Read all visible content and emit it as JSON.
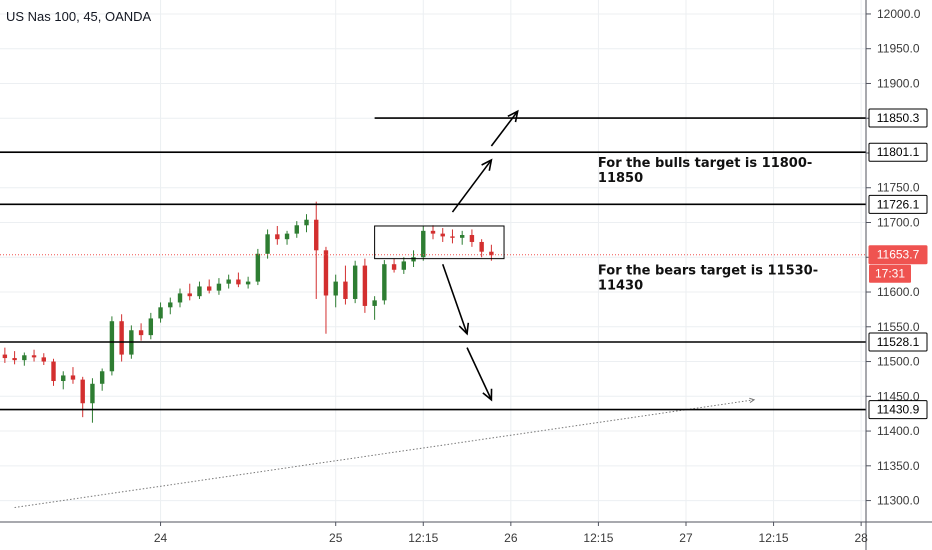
{
  "chart_data": {
    "type": "candlestick",
    "title": "US Nas 100, 45, OANDA",
    "y_range": [
      11285,
      12010
    ],
    "y_ticks": [
      11300,
      11350,
      11400,
      11450,
      11500,
      11550,
      11600,
      11650,
      11700,
      11750,
      11800,
      11850,
      11900,
      11950,
      12000
    ],
    "y_tick_labels": [
      "11300.0",
      "11350.0",
      "11400.0",
      "11450.0",
      "11500.0",
      "11550.0",
      "11600.0",
      "11650.0",
      "11700.0",
      "11750.0",
      "11800.0",
      "11850.0",
      "11900.0",
      "11950.0",
      "12000.0"
    ],
    "x_ticks": [
      {
        "label": "24",
        "bar": 16.5
      },
      {
        "label": "25",
        "bar": 34.5
      },
      {
        "label": "12:15",
        "bar": 43.5
      },
      {
        "label": "26",
        "bar": 52.5
      },
      {
        "label": "12:15",
        "bar": 61.5
      },
      {
        "label": "27",
        "bar": 70.5
      },
      {
        "label": "12:15",
        "bar": 79.5
      },
      {
        "label": "28",
        "bar": 88.5
      }
    ],
    "visible_bars": [
      0,
      89
    ],
    "candles": [
      {
        "o": 11510,
        "h": 11520,
        "l": 11498,
        "c": 11505
      },
      {
        "o": 11505,
        "h": 11515,
        "l": 11496,
        "c": 11502
      },
      {
        "o": 11502,
        "h": 11513,
        "l": 11494,
        "c": 11509
      },
      {
        "o": 11509,
        "h": 11517,
        "l": 11500,
        "c": 11506
      },
      {
        "o": 11506,
        "h": 11512,
        "l": 11495,
        "c": 11500
      },
      {
        "o": 11500,
        "h": 11504,
        "l": 11465,
        "c": 11472
      },
      {
        "o": 11472,
        "h": 11486,
        "l": 11460,
        "c": 11480
      },
      {
        "o": 11480,
        "h": 11492,
        "l": 11468,
        "c": 11474
      },
      {
        "o": 11474,
        "h": 11478,
        "l": 11420,
        "c": 11440
      },
      {
        "o": 11440,
        "h": 11476,
        "l": 11412,
        "c": 11468
      },
      {
        "o": 11468,
        "h": 11490,
        "l": 11458,
        "c": 11486
      },
      {
        "o": 11486,
        "h": 11565,
        "l": 11480,
        "c": 11558
      },
      {
        "o": 11558,
        "h": 11568,
        "l": 11500,
        "c": 11510
      },
      {
        "o": 11510,
        "h": 11552,
        "l": 11504,
        "c": 11545
      },
      {
        "o": 11545,
        "h": 11555,
        "l": 11530,
        "c": 11538
      },
      {
        "o": 11538,
        "h": 11570,
        "l": 11532,
        "c": 11562
      },
      {
        "o": 11562,
        "h": 11585,
        "l": 11556,
        "c": 11578
      },
      {
        "o": 11578,
        "h": 11592,
        "l": 11568,
        "c": 11585
      },
      {
        "o": 11585,
        "h": 11605,
        "l": 11578,
        "c": 11598
      },
      {
        "o": 11598,
        "h": 11612,
        "l": 11588,
        "c": 11594
      },
      {
        "o": 11594,
        "h": 11615,
        "l": 11590,
        "c": 11608
      },
      {
        "o": 11608,
        "h": 11618,
        "l": 11598,
        "c": 11602
      },
      {
        "o": 11602,
        "h": 11620,
        "l": 11596,
        "c": 11612
      },
      {
        "o": 11612,
        "h": 11625,
        "l": 11605,
        "c": 11618
      },
      {
        "o": 11618,
        "h": 11628,
        "l": 11607,
        "c": 11611
      },
      {
        "o": 11611,
        "h": 11622,
        "l": 11605,
        "c": 11615
      },
      {
        "o": 11615,
        "h": 11662,
        "l": 11610,
        "c": 11655
      },
      {
        "o": 11655,
        "h": 11690,
        "l": 11648,
        "c": 11683
      },
      {
        "o": 11683,
        "h": 11695,
        "l": 11668,
        "c": 11676
      },
      {
        "o": 11676,
        "h": 11688,
        "l": 11668,
        "c": 11684
      },
      {
        "o": 11684,
        "h": 11702,
        "l": 11678,
        "c": 11696
      },
      {
        "o": 11696,
        "h": 11712,
        "l": 11686,
        "c": 11704
      },
      {
        "o": 11704,
        "h": 11730,
        "l": 11590,
        "c": 11660
      },
      {
        "o": 11660,
        "h": 11665,
        "l": 11540,
        "c": 11595
      },
      {
        "o": 11595,
        "h": 11625,
        "l": 11578,
        "c": 11615
      },
      {
        "o": 11615,
        "h": 11638,
        "l": 11582,
        "c": 11590
      },
      {
        "o": 11590,
        "h": 11645,
        "l": 11584,
        "c": 11638
      },
      {
        "o": 11638,
        "h": 11648,
        "l": 11570,
        "c": 11580
      },
      {
        "o": 11580,
        "h": 11594,
        "l": 11560,
        "c": 11588
      },
      {
        "o": 11588,
        "h": 11646,
        "l": 11582,
        "c": 11640
      },
      {
        "o": 11640,
        "h": 11648,
        "l": 11628,
        "c": 11632
      },
      {
        "o": 11632,
        "h": 11650,
        "l": 11626,
        "c": 11644
      },
      {
        "o": 11644,
        "h": 11660,
        "l": 11636,
        "c": 11650
      },
      {
        "o": 11650,
        "h": 11695,
        "l": 11645,
        "c": 11688
      },
      {
        "o": 11688,
        "h": 11696,
        "l": 11676,
        "c": 11684
      },
      {
        "o": 11684,
        "h": 11692,
        "l": 11672,
        "c": 11680
      },
      {
        "o": 11680,
        "h": 11690,
        "l": 11670,
        "c": 11678
      },
      {
        "o": 11678,
        "h": 11688,
        "l": 11668,
        "c": 11682
      },
      {
        "o": 11682,
        "h": 11690,
        "l": 11665,
        "c": 11672
      },
      {
        "o": 11672,
        "h": 11676,
        "l": 11650,
        "c": 11658
      },
      {
        "o": 11658,
        "h": 11668,
        "l": 11645,
        "c": 11653
      }
    ],
    "colors": {
      "up": "#26a69a",
      "down": "#ef5350",
      "up_body": "#2e7d32",
      "down_body": "#d32f2f",
      "grid": "#eceff2"
    },
    "levels": [
      {
        "price": 11850.3,
        "label": "11850.3",
        "from_bar": 38.5
      },
      {
        "price": 11801.1,
        "label": "11801.1",
        "from_bar": 0
      },
      {
        "price": 11726.1,
        "label": "11726.1",
        "from_bar": 0
      },
      {
        "price": 11528.1,
        "label": "11528.1",
        "from_bar": 0
      },
      {
        "price": 11430.9,
        "label": "11430.9",
        "from_bar": 0
      }
    ],
    "last_price": {
      "price": 11653.7,
      "label": "11653.7",
      "countdown": "17:31",
      "color": "#ef5350"
    },
    "range_box": {
      "from_bar": 38.5,
      "to_bar": 51.8,
      "low": 11648,
      "high": 11695
    },
    "arrows": [
      {
        "from": [
          46.5,
          11715
        ],
        "to": [
          50.5,
          11790
        ]
      },
      {
        "from": [
          50.5,
          11810
        ],
        "to": [
          53.2,
          11860
        ]
      },
      {
        "from": [
          45.5,
          11640
        ],
        "to": [
          48.0,
          11540
        ]
      },
      {
        "from": [
          48.0,
          11520
        ],
        "to": [
          50.5,
          11445
        ]
      }
    ],
    "trendline": {
      "from": [
        1.5,
        11290
      ],
      "to": [
        77.5,
        11445
      ]
    },
    "annotations": [
      {
        "lines": [
          "For the bulls target is 11800-",
          "11850"
        ],
        "bar": 61.5,
        "price": 11780
      },
      {
        "lines": [
          "For the bears target is 11530-",
          "11430"
        ],
        "bar": 61.5,
        "price": 11625
      }
    ]
  }
}
